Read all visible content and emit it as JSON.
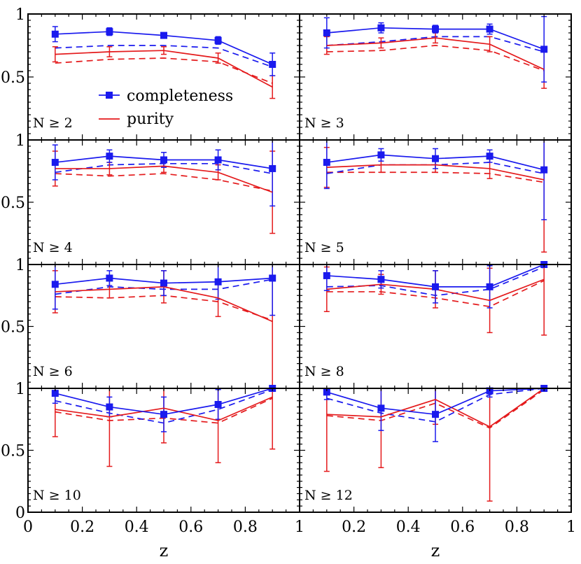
{
  "chart_data": {
    "type": "line",
    "layout": "4x2 grid of panels",
    "xlabel": "z",
    "ylabel": "",
    "xlim": [
      0,
      1
    ],
    "ylim": [
      0,
      1
    ],
    "x_ticks": [
      "0",
      "0.2",
      "0.4",
      "0.6",
      "0.8",
      "1"
    ],
    "y_ticks": [
      "0",
      "0.5",
      "1"
    ],
    "legend": {
      "placement": "inside first panel, center-left",
      "entries": [
        {
          "label": "completeness",
          "color": "#1a1aee",
          "marker": "square"
        },
        {
          "label": "purity",
          "color": "#e41a1c",
          "marker": "none"
        }
      ]
    },
    "colors": {
      "completeness": "#1a1aee",
      "purity": "#e41a1c"
    },
    "x": [
      0.1,
      0.3,
      0.5,
      0.7,
      0.9
    ],
    "panels": [
      {
        "label": "N ≥ 2",
        "completeness": [
          0.84,
          0.86,
          0.83,
          0.79,
          0.6
        ],
        "completeness_err": [
          0.06,
          0.03,
          0.02,
          0.03,
          0.09
        ],
        "completeness_dashed": [
          0.73,
          0.75,
          0.75,
          0.73,
          0.58
        ],
        "purity": [
          0.68,
          0.7,
          0.71,
          0.65,
          0.42
        ],
        "purity_err": [
          0.06,
          0.04,
          0.03,
          0.04,
          0.09
        ],
        "purity_dashed": [
          0.61,
          0.64,
          0.65,
          0.62,
          0.45
        ]
      },
      {
        "label": "N ≥ 3",
        "completeness": [
          0.85,
          0.89,
          0.88,
          0.88,
          0.72
        ],
        "completeness_err": [
          0.12,
          0.04,
          0.03,
          0.04,
          0.26
        ],
        "completeness_dashed": [
          0.75,
          0.78,
          0.82,
          0.82,
          0.7
        ],
        "purity": [
          0.75,
          0.77,
          0.81,
          0.76,
          0.56
        ],
        "purity_err": [
          0.07,
          0.04,
          0.04,
          0.06,
          0.15
        ],
        "purity_dashed": [
          0.7,
          0.71,
          0.75,
          0.71,
          0.55
        ]
      },
      {
        "label": "N ≥ 4",
        "completeness": [
          0.82,
          0.87,
          0.84,
          0.84,
          0.77
        ],
        "completeness_err": [
          0.14,
          0.05,
          0.06,
          0.08,
          0.3
        ],
        "completeness_dashed": [
          0.74,
          0.8,
          0.81,
          0.81,
          0.73
        ],
        "purity": [
          0.77,
          0.77,
          0.79,
          0.74,
          0.58
        ],
        "purity_err": [
          0.14,
          0.05,
          0.05,
          0.06,
          0.33
        ],
        "purity_dashed": [
          0.73,
          0.71,
          0.73,
          0.68,
          0.59
        ]
      },
      {
        "label": "N ≥ 5",
        "completeness": [
          0.82,
          0.88,
          0.85,
          0.87,
          0.76
        ],
        "completeness_err": [
          0.21,
          0.05,
          0.08,
          0.05,
          0.4
        ],
        "completeness_dashed": [
          0.73,
          0.8,
          0.8,
          0.82,
          0.73
        ],
        "purity": [
          0.78,
          0.8,
          0.8,
          0.77,
          0.68
        ],
        "purity_err": [
          0.16,
          0.06,
          0.06,
          0.08,
          0.58
        ],
        "purity_dashed": [
          0.74,
          0.74,
          0.74,
          0.73,
          0.66
        ]
      },
      {
        "label": "N ≥ 6",
        "completeness": [
          0.84,
          0.89,
          0.85,
          0.86,
          0.89
        ],
        "completeness_err": [
          0.2,
          0.06,
          0.1,
          0.14,
          0.3
        ],
        "completeness_dashed": [
          0.76,
          0.82,
          0.8,
          0.8,
          0.88
        ],
        "purity": [
          0.78,
          0.8,
          0.82,
          0.73,
          0.54
        ],
        "purity_err": [
          0.17,
          0.07,
          0.13,
          0.15,
          0.54
        ],
        "purity_dashed": [
          0.74,
          0.73,
          0.75,
          0.7,
          0.55
        ]
      },
      {
        "label": "N ≥ 8",
        "completeness": [
          0.91,
          0.88,
          0.82,
          0.82,
          1.0
        ],
        "completeness_err": [
          0.12,
          0.07,
          0.13,
          0.17,
          0.0
        ],
        "completeness_dashed": [
          0.82,
          0.83,
          0.75,
          0.8,
          0.98
        ],
        "purity": [
          0.8,
          0.84,
          0.8,
          0.71,
          0.88
        ],
        "purity_err": [
          0.18,
          0.08,
          0.15,
          0.26,
          0.45
        ],
        "purity_dashed": [
          0.78,
          0.78,
          0.73,
          0.66,
          0.87
        ]
      },
      {
        "label": "N ≥ 10",
        "completeness": [
          0.96,
          0.85,
          0.79,
          0.87,
          1.0
        ],
        "completeness_err": [
          0.08,
          0.08,
          0.14,
          0.12,
          0.0
        ],
        "completeness_dashed": [
          0.9,
          0.8,
          0.72,
          0.83,
          0.99
        ],
        "purity": [
          0.83,
          0.77,
          0.84,
          0.74,
          0.93
        ],
        "purity_err": [
          0.22,
          0.4,
          0.28,
          0.34,
          0.42
        ],
        "purity_dashed": [
          0.81,
          0.74,
          0.76,
          0.72,
          0.92
        ]
      },
      {
        "label": "N ≥ 12",
        "completeness": [
          0.97,
          0.84,
          0.79,
          0.98,
          1.0
        ],
        "completeness_err": [
          0.06,
          0.18,
          0.22,
          0.05,
          0.0
        ],
        "completeness_dashed": [
          0.92,
          0.8,
          0.73,
          0.95,
          1.0
        ],
        "purity": [
          0.79,
          0.77,
          0.91,
          0.69,
          1.0
        ],
        "purity_err": [
          0.46,
          0.41,
          0.2,
          0.6,
          0.0
        ],
        "purity_dashed": [
          0.78,
          0.74,
          0.88,
          0.68,
          0.99
        ]
      }
    ]
  }
}
